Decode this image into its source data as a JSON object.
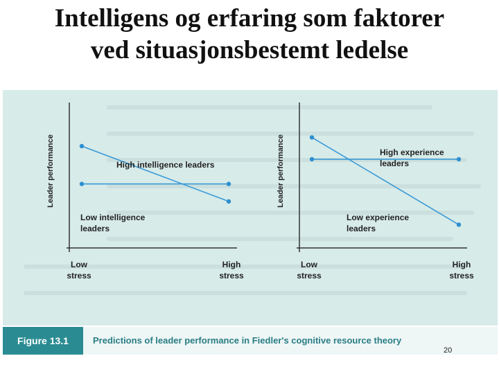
{
  "slide": {
    "title_line1": "Intelligens og erfaring som faktorer",
    "title_line2": "ved situasjonsbestemt ledelse",
    "page_number": "20"
  },
  "figure": {
    "label": "Figure 13.1",
    "caption": "Predictions of leader performance in Fiedler's cognitive resource theory"
  },
  "colors": {
    "line": "#3a9ad6",
    "marker": "#2e8fd0",
    "axis": "#333333",
    "text": "#222222",
    "panel": "#d7ebe9",
    "caption_label_bg": "#2a8c92"
  },
  "chart_data": [
    {
      "type": "line",
      "xlabel": "",
      "ylabel": "Leader performance",
      "categories": [
        "Low\nstress",
        "High\nstress"
      ],
      "category_lines": [
        [
          "Low",
          "stress"
        ],
        [
          "High",
          "stress"
        ]
      ],
      "ylim": [
        0,
        10
      ],
      "grid": false,
      "series": [
        {
          "name": "High intelligence leaders",
          "label_lines": [
            "High intelligence leaders"
          ],
          "values": [
            7.0,
            3.2
          ]
        },
        {
          "name": "Low intelligence leaders",
          "label_lines": [
            "Low intelligence",
            "leaders"
          ],
          "values": [
            4.4,
            4.4
          ]
        }
      ]
    },
    {
      "type": "line",
      "xlabel": "",
      "ylabel": "Leader performance",
      "categories": [
        "Low\nstress",
        "High\nstress"
      ],
      "category_lines": [
        [
          "Low",
          "stress"
        ],
        [
          "High",
          "stress"
        ]
      ],
      "ylim": [
        0,
        10
      ],
      "grid": false,
      "series": [
        {
          "name": "High experience leaders",
          "label_lines": [
            "High experience",
            "leaders"
          ],
          "values": [
            6.1,
            6.1
          ]
        },
        {
          "name": "Low experience leaders",
          "label_lines": [
            "Low experience",
            "leaders"
          ],
          "values": [
            7.6,
            1.6
          ]
        }
      ]
    }
  ]
}
